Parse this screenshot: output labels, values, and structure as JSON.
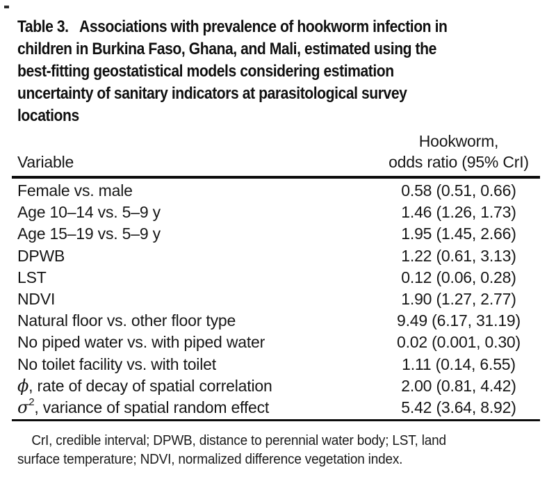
{
  "title": "Table 3.   Associations with prevalence of hookworm infection in\nchildren in Burkina Faso, Ghana, and Mali, estimated using the\nbest-fitting geostatistical models considering estimation\nuncertainty of sanitary indicators at parasitological survey\nlocations",
  "table": {
    "col1_header": "Variable",
    "col2_header": "Hookworm,\nodds ratio (95% CrI)",
    "rows": [
      {
        "variable": "Female vs. male",
        "value": "0.58 (0.51, 0.66)"
      },
      {
        "variable": "Age 10–14 vs. 5–9 y",
        "value": "1.46 (1.26, 1.73)"
      },
      {
        "variable": "Age 15–19 vs. 5–9 y",
        "value": "1.95 (1.45, 2.66)"
      },
      {
        "variable": "DPWB",
        "value": "1.22 (0.61, 3.13)"
      },
      {
        "variable": "LST",
        "value": "0.12 (0.06, 0.28)"
      },
      {
        "variable": "NDVI",
        "value": "1.90 (1.27, 2.77)"
      },
      {
        "variable": "Natural floor vs. other floor type",
        "value": "9.49 (6.17, 31.19)"
      },
      {
        "variable": "No piped water vs. with piped water",
        "value": "0.02 (0.001, 0.30)"
      },
      {
        "variable": "No toilet facility vs. with toilet",
        "value": "1.11 (0.14, 6.55)"
      },
      {
        "symbol": "ϕ",
        "variable": ", rate of decay of spatial correlation",
        "value": "2.00 (0.81, 4.42)"
      },
      {
        "symbol": "σ",
        "superscript": "2",
        "variable": ", variance of spatial random effect",
        "value": "5.42 (3.64, 8.92)"
      }
    ]
  },
  "footnote": "    CrI, credible interval; DPWB, distance to perennial water body; LST, land\nsurface temperature; NDVI, normalized difference vegetation index.",
  "colors": {
    "text": "#161616",
    "rule": "#0c0c0c",
    "background": "#ffffff"
  }
}
